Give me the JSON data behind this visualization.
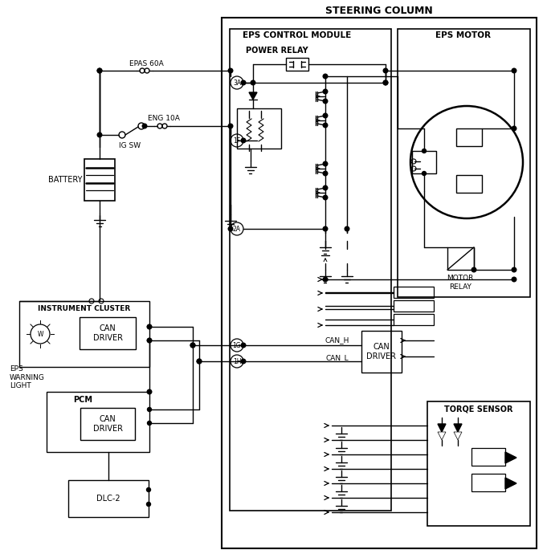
{
  "title": "STEERING COLUMN",
  "eps_cm_label": "EPS CONTROL MODULE",
  "eps_motor_label": "EPS MOTOR",
  "power_relay_label": "POWER RELAY",
  "motor_relay_label": "MOTOR\nRELAY",
  "torque_sensor_label": "TORQE SENSOR",
  "battery_label": "BATTERY",
  "ig_sw_label": "IG SW",
  "epas_fuse_label": "EPAS 60A",
  "eng_fuse_label": "ENG 10A",
  "instrument_cluster_label": "INSTRUMENT CLUSTER",
  "can_h_label": "CAN_H",
  "can_l_label": "CAN_L",
  "can_driver_label": "CAN\nDRIVER",
  "eps_warning_label": "EPS\nWARNING\nLIGHT",
  "pcm_label": "PCM",
  "dlc2_label": "DLC-2",
  "pin_3a": "3A",
  "pin_1f": "1F",
  "pin_2a": "2A",
  "pin_1g": "1G",
  "pin_1h": "1H"
}
